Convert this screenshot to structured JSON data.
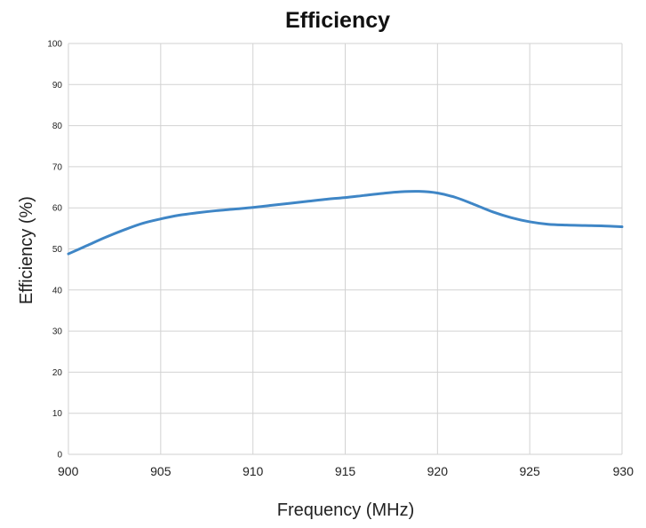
{
  "chart_data": {
    "type": "line",
    "title": "Efficiency",
    "xlabel": "Frequency (MHz)",
    "ylabel": "Efficiency (%)",
    "xlim": [
      900,
      930
    ],
    "ylim": [
      0,
      100
    ],
    "x_ticks": [
      900,
      905,
      910,
      915,
      920,
      925,
      930
    ],
    "y_ticks": [
      0,
      10,
      20,
      30,
      40,
      50,
      60,
      70,
      80,
      90,
      100
    ],
    "grid": true,
    "series": [
      {
        "color": "#3f86c6",
        "points": [
          [
            900,
            48.8
          ],
          [
            901,
            50.8
          ],
          [
            902,
            52.8
          ],
          [
            903,
            54.6
          ],
          [
            904,
            56.2
          ],
          [
            905,
            57.3
          ],
          [
            906,
            58.2
          ],
          [
            907,
            58.8
          ],
          [
            908,
            59.3
          ],
          [
            909,
            59.7
          ],
          [
            910,
            60.1
          ],
          [
            911,
            60.6
          ],
          [
            912,
            61.1
          ],
          [
            913,
            61.6
          ],
          [
            914,
            62.1
          ],
          [
            915,
            62.5
          ],
          [
            916,
            63.0
          ],
          [
            917,
            63.5
          ],
          [
            918,
            63.9
          ],
          [
            919,
            64.0
          ],
          [
            920,
            63.6
          ],
          [
            921,
            62.5
          ],
          [
            922,
            60.8
          ],
          [
            923,
            59.0
          ],
          [
            924,
            57.6
          ],
          [
            925,
            56.6
          ],
          [
            926,
            56.0
          ],
          [
            927,
            55.8
          ],
          [
            928,
            55.7
          ],
          [
            929,
            55.6
          ],
          [
            930,
            55.4
          ]
        ]
      }
    ]
  }
}
